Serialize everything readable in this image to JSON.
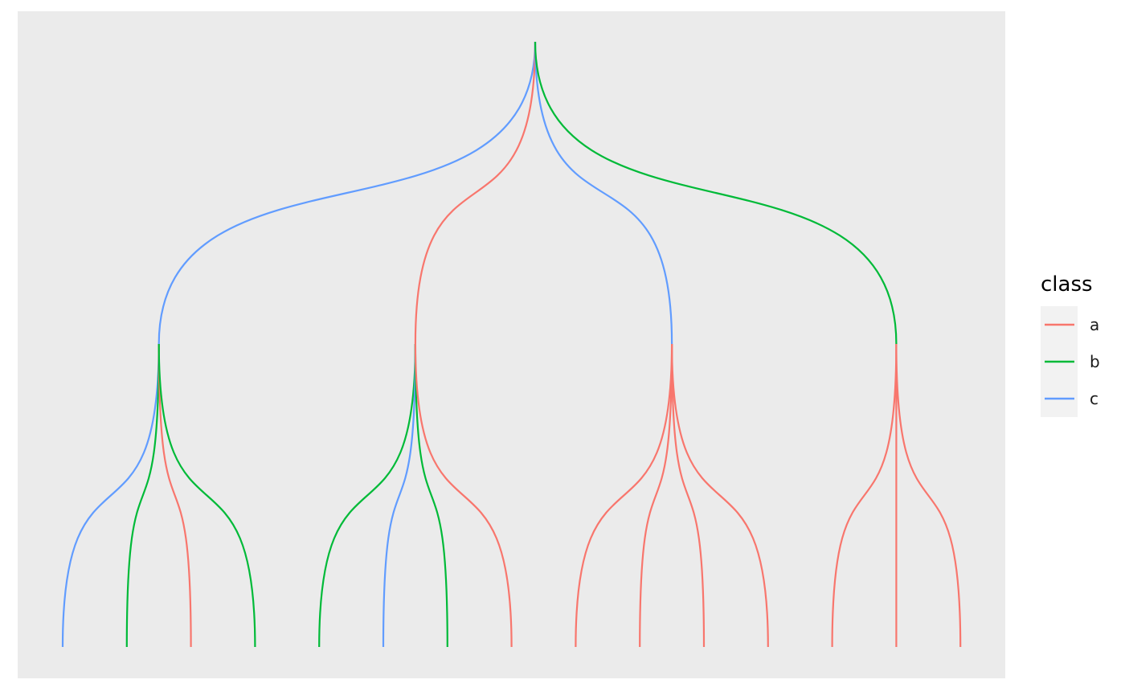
{
  "legend": {
    "title": "class",
    "entries": [
      {
        "key": "a",
        "label": "a",
        "color": "#F8766D"
      },
      {
        "key": "b",
        "label": "b",
        "color": "#00BA38"
      },
      {
        "key": "c",
        "label": "c",
        "color": "#619CFF"
      }
    ]
  },
  "tree": {
    "root": "root",
    "groups": [
      {
        "id": "g1",
        "class": "c",
        "leaves": [
          "c",
          "b",
          "a",
          "b"
        ]
      },
      {
        "id": "g2",
        "class": "a",
        "leaves": [
          "b",
          "c",
          "b",
          "a"
        ]
      },
      {
        "id": "g3",
        "class": "c",
        "leaves": [
          "a",
          "a",
          "a",
          "a"
        ]
      },
      {
        "id": "g4",
        "class": "b",
        "leaves": [
          "a",
          "a",
          "a"
        ]
      }
    ]
  }
}
